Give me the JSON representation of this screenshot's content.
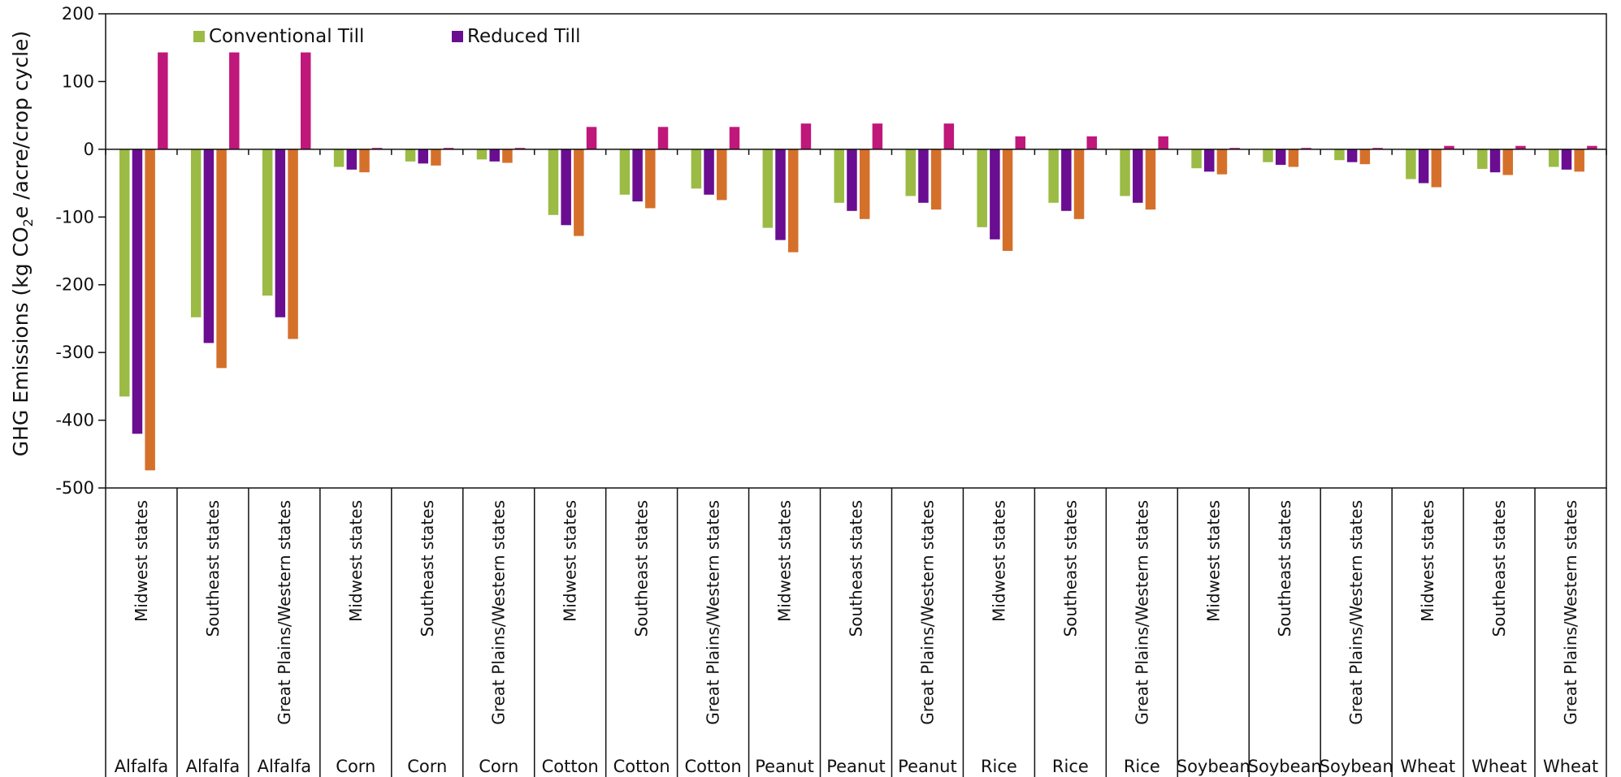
{
  "chart_data": {
    "type": "bar",
    "ylabel": "GHG Emissions  (kg CO2e /acre/crop cycle)",
    "ylabel_parts": {
      "before": "GHG Emissions  (kg CO",
      "sub": "2",
      "after": "e /acre/crop cycle)"
    },
    "ylim": [
      -500,
      200
    ],
    "yticks": [
      200,
      100,
      0,
      -100,
      -200,
      -300,
      -400,
      -500
    ],
    "grid": false,
    "legend_position": "top-left",
    "categories": [
      {
        "crop": "Alfalfa",
        "region": "Midwest states"
      },
      {
        "crop": "Alfalfa",
        "region": "Southeast states"
      },
      {
        "crop": "Alfalfa",
        "region": "Great Plains/Western states"
      },
      {
        "crop": "Corn",
        "region": "Midwest states"
      },
      {
        "crop": "Corn",
        "region": "Southeast states"
      },
      {
        "crop": "Corn",
        "region": "Great Plains/Western states"
      },
      {
        "crop": "Cotton",
        "region": "Midwest states"
      },
      {
        "crop": "Cotton",
        "region": "Southeast states"
      },
      {
        "crop": "Cotton",
        "region": "Great Plains/Western states"
      },
      {
        "crop": "Peanut",
        "region": "Midwest states"
      },
      {
        "crop": "Peanut",
        "region": "Southeast states"
      },
      {
        "crop": "Peanut",
        "region": "Great Plains/Western states"
      },
      {
        "crop": "Rice",
        "region": "Midwest states"
      },
      {
        "crop": "Rice",
        "region": "Southeast states"
      },
      {
        "crop": "Rice",
        "region": "Great Plains/Western states"
      },
      {
        "crop": "Soybean",
        "region": "Midwest states"
      },
      {
        "crop": "Soybean",
        "region": "Southeast states"
      },
      {
        "crop": "Soybean",
        "region": "Great Plains/Western states"
      },
      {
        "crop": "Wheat",
        "region": "Midwest states"
      },
      {
        "crop": "Wheat",
        "region": "Southeast states"
      },
      {
        "crop": "Wheat",
        "region": "Great Plains/Western states"
      }
    ],
    "series": [
      {
        "name": "Conventional Till",
        "color": "#9bbb45",
        "show_in_legend": true,
        "values": [
          -365,
          -248,
          -216,
          -26,
          -18,
          -15,
          -97,
          -67,
          -58,
          -116,
          -79,
          -69,
          -115,
          -79,
          -69,
          -28,
          -19,
          -16,
          -44,
          -29,
          -26
        ]
      },
      {
        "name": "Reduced Till",
        "color": "#6a0d91",
        "show_in_legend": true,
        "values": [
          -420,
          -286,
          -248,
          -30,
          -21,
          -18,
          -112,
          -77,
          -67,
          -134,
          -91,
          -79,
          -133,
          -91,
          -79,
          -33,
          -23,
          -19,
          -50,
          -34,
          -30
        ]
      },
      {
        "name": "",
        "color": "#d5702b",
        "show_in_legend": false,
        "values": [
          -474,
          -323,
          -280,
          -34,
          -24,
          -20,
          -128,
          -87,
          -75,
          -152,
          -103,
          -89,
          -150,
          -103,
          -89,
          -37,
          -26,
          -22,
          -56,
          -38,
          -33
        ]
      },
      {
        "name": "",
        "color": "#c0177a",
        "show_in_legend": false,
        "values": [
          143,
          143,
          143,
          2,
          2,
          2,
          33,
          33,
          33,
          38,
          38,
          38,
          19,
          19,
          19,
          2,
          2,
          2,
          5,
          5,
          5
        ]
      }
    ]
  }
}
